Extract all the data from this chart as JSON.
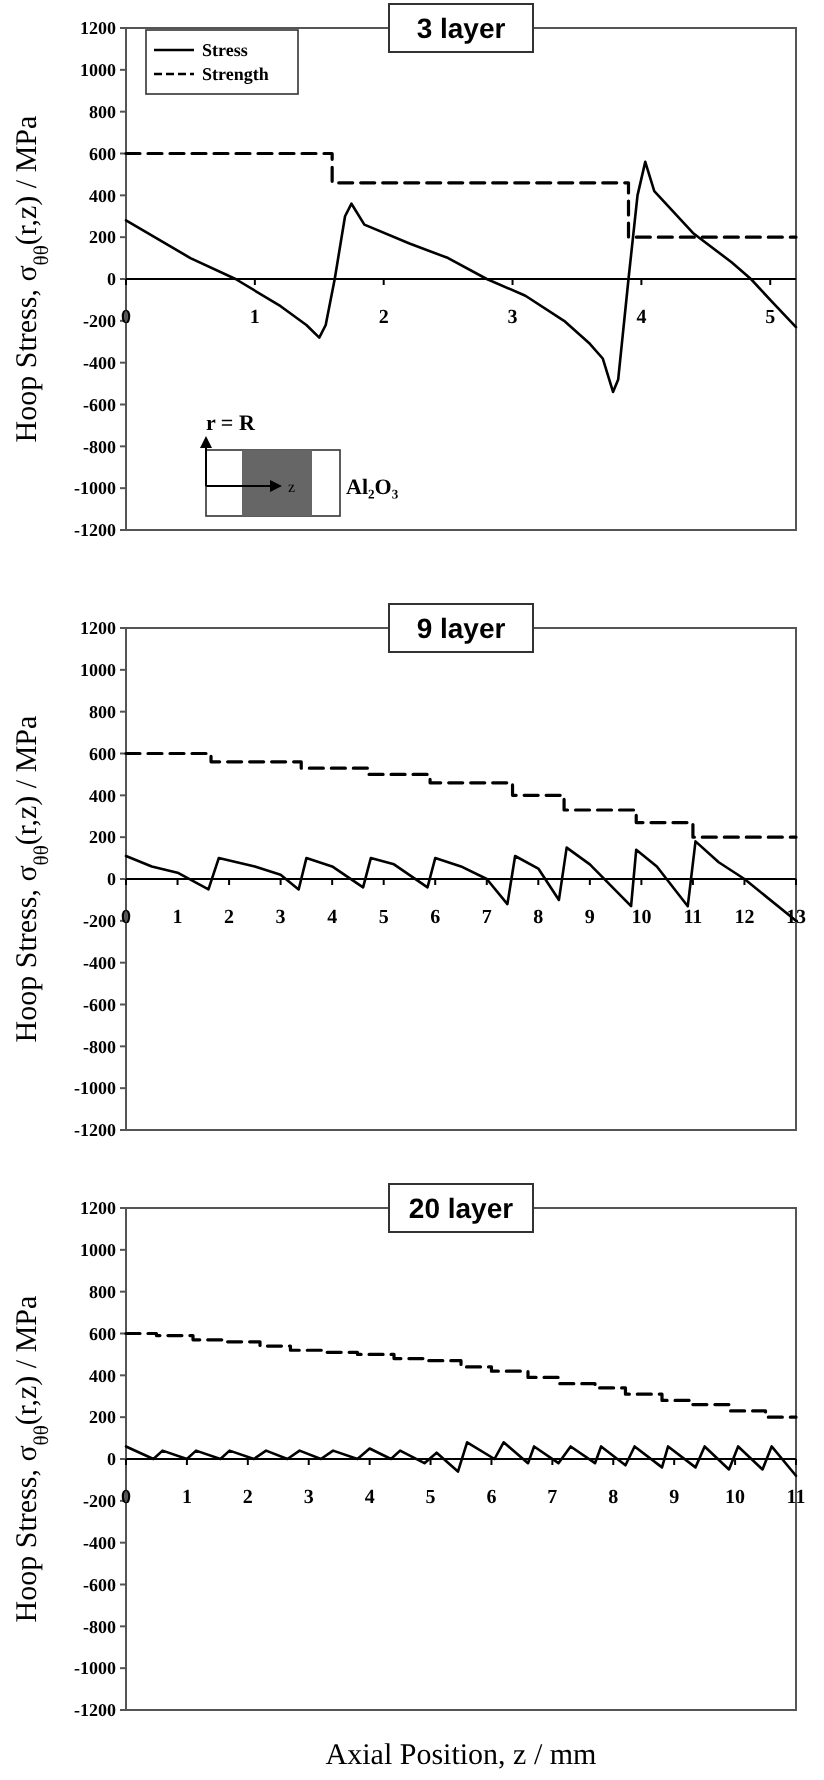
{
  "chart_data": [
    {
      "type": "line",
      "title": "3 layer",
      "ylabel": "Hoop Stress, σ$_{θθ}$(r,z) / MPa",
      "xlim": [
        0,
        5.2
      ],
      "xticks": [
        0,
        1,
        2,
        3,
        4,
        5
      ],
      "ylim": [
        -1200,
        1200
      ],
      "yticks": [
        -1200,
        -1000,
        -800,
        -600,
        -400,
        -200,
        0,
        200,
        400,
        600,
        800,
        1000,
        1200
      ],
      "legend": "top left",
      "annotations": [
        "r = R",
        "z",
        "Al₂O₃"
      ],
      "series": [
        {
          "name": "Stress",
          "type": "line",
          "color": "#000000",
          "line_style": "solid",
          "x": [
            0,
            0.5,
            0.85,
            1.2,
            1.4,
            1.5,
            1.55,
            1.62,
            1.7,
            1.75,
            1.85,
            2.2,
            2.5,
            2.8,
            3.1,
            3.4,
            3.6,
            3.7,
            3.78,
            3.82,
            3.9,
            3.97,
            4.03,
            4.1,
            4.4,
            4.7,
            4.85,
            5.0,
            5.2
          ],
          "values": [
            280,
            100,
            0,
            -130,
            -220,
            -280,
            -220,
            0,
            300,
            360,
            260,
            170,
            100,
            0,
            -80,
            -200,
            -310,
            -380,
            -540,
            -480,
            0,
            400,
            560,
            420,
            220,
            80,
            0,
            -100,
            -230
          ]
        },
        {
          "name": "Strength",
          "type": "step",
          "color": "#000000",
          "line_style": "dashed",
          "x": [
            0,
            1.6,
            3.9,
            5.2
          ],
          "values": [
            600,
            460,
            200,
            200
          ]
        }
      ]
    },
    {
      "type": "line",
      "title": "9 layer",
      "ylabel": "Hoop Stress, σ$_{θθ}$(r,z) / MPa",
      "xlim": [
        0,
        13
      ],
      "xticks": [
        0,
        1,
        2,
        3,
        4,
        5,
        6,
        7,
        8,
        9,
        10,
        11,
        12,
        13
      ],
      "ylim": [
        -1200,
        1200
      ],
      "yticks": [
        -1200,
        -1000,
        -800,
        -600,
        -400,
        -200,
        0,
        200,
        400,
        600,
        800,
        1000,
        1200
      ],
      "series": [
        {
          "type": "line",
          "color": "#000000",
          "line_style": "solid",
          "x": [
            0,
            0.5,
            1,
            1.6,
            1.8,
            2.5,
            3.0,
            3.35,
            3.5,
            4.0,
            4.6,
            4.75,
            5.2,
            5.85,
            6.0,
            6.5,
            7.0,
            7.4,
            7.55,
            8.0,
            8.4,
            8.55,
            9.0,
            9.8,
            9.9,
            10.3,
            10.9,
            11.05,
            11.5,
            12,
            13
          ],
          "values": [
            110,
            60,
            30,
            -50,
            100,
            60,
            20,
            -50,
            100,
            60,
            -40,
            100,
            70,
            -40,
            100,
            60,
            0,
            -120,
            110,
            50,
            -100,
            150,
            70,
            -130,
            140,
            60,
            -130,
            180,
            80,
            0,
            -200
          ]
        },
        {
          "type": "step",
          "color": "#000000",
          "line_style": "dashed",
          "x": [
            0,
            1.65,
            3.4,
            4.7,
            5.9,
            7.5,
            8.5,
            9.9,
            11,
            13
          ],
          "values": [
            600,
            560,
            530,
            500,
            460,
            400,
            330,
            270,
            200,
            200
          ]
        }
      ]
    },
    {
      "type": "line",
      "title": "20 layer",
      "xlabel": "Axial Position, z / mm",
      "ylabel": "Hoop Stress, σ$_{θθ}$(r,z) / MPa",
      "xlim": [
        0,
        11
      ],
      "xticks": [
        0,
        1,
        2,
        3,
        4,
        5,
        6,
        7,
        8,
        9,
        10,
        11
      ],
      "ylim": [
        -1200,
        1200
      ],
      "yticks": [
        -1200,
        -1000,
        -800,
        -600,
        -400,
        -200,
        0,
        200,
        400,
        600,
        800,
        1000,
        1200
      ],
      "series": [
        {
          "type": "line",
          "color": "#000000",
          "line_style": "solid",
          "x": [
            0,
            0.45,
            0.6,
            1.0,
            1.15,
            1.55,
            1.7,
            2.1,
            2.3,
            2.65,
            2.85,
            3.2,
            3.4,
            3.8,
            4.0,
            4.35,
            4.5,
            4.9,
            5.1,
            5.45,
            5.6,
            6.05,
            6.2,
            6.6,
            6.7,
            7.1,
            7.3,
            7.7,
            7.8,
            8.2,
            8.35,
            8.8,
            8.9,
            9.35,
            9.5,
            9.9,
            10.05,
            10.45,
            10.6,
            11
          ],
          "values": [
            60,
            0,
            40,
            0,
            40,
            0,
            40,
            0,
            40,
            0,
            40,
            0,
            40,
            0,
            50,
            0,
            40,
            -20,
            30,
            -60,
            80,
            0,
            80,
            -20,
            60,
            -20,
            60,
            -20,
            60,
            -30,
            60,
            -40,
            60,
            -40,
            60,
            -50,
            60,
            -50,
            60,
            -80
          ]
        },
        {
          "type": "step",
          "color": "#000000",
          "line_style": "dashed",
          "x": [
            0,
            0.5,
            1.1,
            1.6,
            2.2,
            2.7,
            3.3,
            3.8,
            4.4,
            4.9,
            5.5,
            6.0,
            6.6,
            7.1,
            7.7,
            8.2,
            8.8,
            9.3,
            9.9,
            10.5,
            11
          ],
          "values": [
            600,
            590,
            570,
            560,
            540,
            520,
            510,
            500,
            480,
            470,
            440,
            420,
            390,
            360,
            340,
            310,
            280,
            260,
            230,
            200,
            200
          ]
        }
      ]
    }
  ]
}
